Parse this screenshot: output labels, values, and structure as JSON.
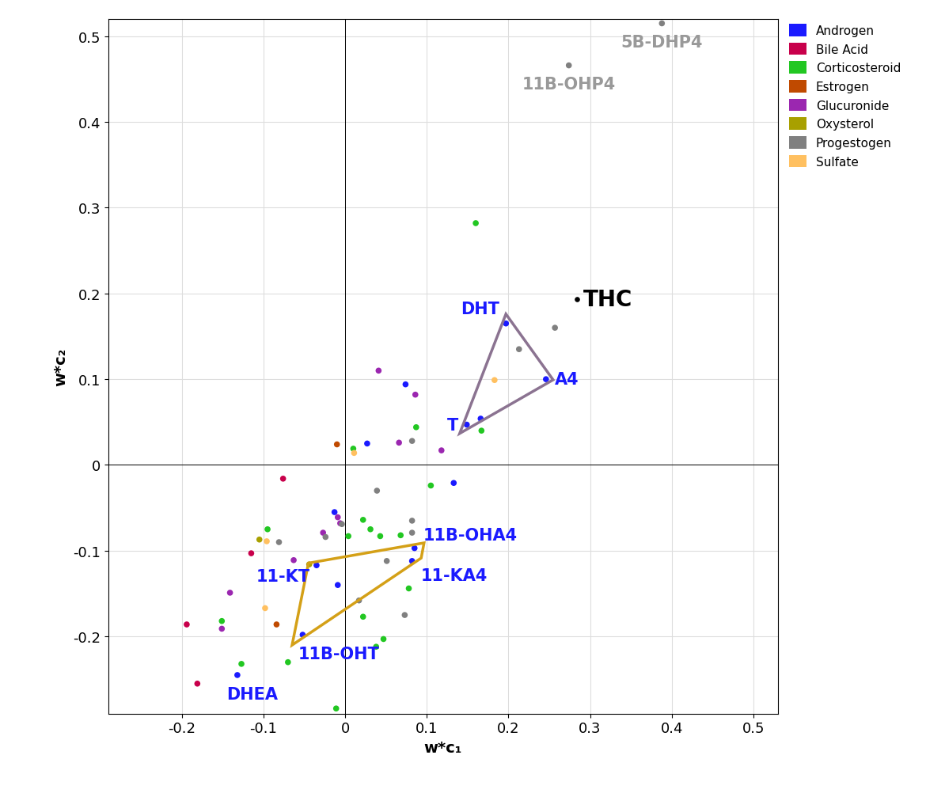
{
  "chart_data": {
    "type": "scatter",
    "x_label": "w*c₁",
    "y_label": "w*c₂",
    "xlim": [
      -0.29,
      0.53
    ],
    "ylim": [
      -0.29,
      0.52
    ],
    "xticks": [
      -0.2,
      -0.1,
      0,
      0.1,
      0.2,
      0.3,
      0.4,
      0.5
    ],
    "yticks": [
      -0.2,
      -0.1,
      0,
      0.1,
      0.2,
      0.3,
      0.4,
      0.5
    ],
    "grid": true,
    "legend": "upper left",
    "series": [
      {
        "name": "Androgen",
        "color": "#1a1aff",
        "x": [
          0.197,
          0.246,
          0.149,
          0.166,
          0.074,
          0.027,
          0.133,
          -0.013,
          0.085,
          0.082,
          -0.035,
          -0.009,
          -0.052,
          -0.132
        ],
        "y": [
          0.165,
          0.1,
          0.047,
          0.054,
          0.094,
          0.025,
          -0.021,
          -0.055,
          -0.097,
          -0.112,
          -0.117,
          -0.14,
          -0.198,
          -0.245
        ],
        "labels": [
          "DHT",
          "A4",
          "T",
          null,
          null,
          null,
          null,
          null,
          "11B-OHA4",
          "11-KA4",
          "11-KT",
          null,
          "11B-OHT",
          "DHEA"
        ]
      },
      {
        "name": "Bile Acid",
        "color": "#c8004b",
        "x": [
          -0.076,
          -0.115,
          -0.194,
          -0.181
        ],
        "y": [
          -0.016,
          -0.103,
          -0.186,
          -0.255
        ]
      },
      {
        "name": "Corticosteroid",
        "color": "#22c722",
        "x": [
          0.16,
          0.087,
          0.167,
          0.01,
          0.105,
          -0.095,
          0.022,
          0.031,
          0.043,
          0.068,
          0.004,
          0.078,
          0.022,
          0.047,
          0.038,
          -0.151,
          -0.127,
          -0.07,
          -0.011
        ],
        "y": [
          0.282,
          0.044,
          0.04,
          0.019,
          -0.024,
          -0.075,
          -0.064,
          -0.075,
          -0.083,
          -0.082,
          -0.083,
          -0.144,
          -0.177,
          -0.203,
          -0.212,
          -0.182,
          -0.232,
          -0.23,
          -0.284
        ]
      },
      {
        "name": "Estrogen",
        "color": "#c04a00",
        "x": [
          -0.01,
          -0.084
        ],
        "y": [
          0.024,
          -0.186
        ]
      },
      {
        "name": "Glucuronide",
        "color": "#9b27b0",
        "x": [
          0.041,
          0.086,
          0.066,
          0.118,
          -0.009,
          -0.006,
          -0.027,
          -0.063,
          -0.141,
          -0.151
        ],
        "y": [
          0.11,
          0.082,
          0.026,
          0.017,
          -0.061,
          -0.068,
          -0.079,
          -0.111,
          -0.149,
          -0.191
        ]
      },
      {
        "name": "Oxysterol",
        "color": "#a8a000",
        "x": [
          -0.105,
          -0.044
        ],
        "y": [
          -0.087,
          -0.116
        ]
      },
      {
        "name": "Progestogen",
        "color": "#808080",
        "x": [
          0.388,
          0.274,
          0.257,
          0.213,
          0.082,
          0.039,
          -0.004,
          0.082,
          0.082,
          -0.081,
          -0.024,
          0.051,
          0.017,
          0.073
        ],
        "y": [
          0.515,
          0.466,
          0.16,
          0.135,
          0.028,
          -0.03,
          -0.069,
          -0.065,
          -0.079,
          -0.09,
          -0.084,
          -0.112,
          -0.158,
          -0.175
        ],
        "labels": [
          "5B-DHP4",
          "11B-OHP4",
          null,
          null,
          null,
          null,
          null,
          null,
          null,
          null,
          null,
          null,
          null,
          null
        ]
      },
      {
        "name": "Sulfate",
        "color": "#ffc060",
        "x": [
          0.183,
          0.011,
          -0.096,
          -0.098
        ],
        "y": [
          0.099,
          0.014,
          -0.089,
          -0.167
        ]
      }
    ],
    "annotations": [
      {
        "text": "THC",
        "x": 0.284,
        "y": 0.193,
        "color": "#000000"
      }
    ],
    "groups": [
      {
        "members": [
          "DHT",
          "A4",
          "T"
        ],
        "color": "#8b7391"
      },
      {
        "members": [
          "11B-OHA4",
          "11-KA4",
          "11B-OHT",
          "11-KT"
        ],
        "color": "#d4a017"
      }
    ]
  }
}
